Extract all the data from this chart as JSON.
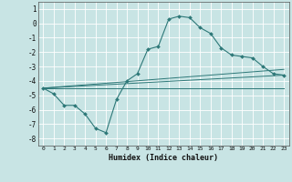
{
  "xlabel": "Humidex (Indice chaleur)",
  "xlim": [
    -0.5,
    23.5
  ],
  "ylim": [
    -8.5,
    1.5
  ],
  "xticks": [
    0,
    1,
    2,
    3,
    4,
    5,
    6,
    7,
    8,
    9,
    10,
    11,
    12,
    13,
    14,
    15,
    16,
    17,
    18,
    19,
    20,
    21,
    22,
    23
  ],
  "yticks": [
    -8,
    -7,
    -6,
    -5,
    -4,
    -3,
    -2,
    -1,
    0,
    1
  ],
  "background_color": "#c8e4e4",
  "grid_color": "#ffffff",
  "line_color": "#2d7878",
  "main_line": {
    "x": [
      0,
      1,
      2,
      3,
      4,
      5,
      6,
      7,
      8,
      9,
      10,
      11,
      12,
      13,
      14,
      15,
      16,
      17,
      18,
      19,
      20,
      21,
      22,
      23
    ],
    "y": [
      -4.5,
      -4.9,
      -5.7,
      -5.7,
      -6.3,
      -7.3,
      -7.6,
      -5.3,
      -4.0,
      -3.5,
      -1.8,
      -1.6,
      0.3,
      0.5,
      0.4,
      -0.3,
      -0.7,
      -1.7,
      -2.2,
      -2.3,
      -2.4,
      -3.0,
      -3.5,
      -3.6
    ]
  },
  "ref_lines": [
    {
      "x0": 0,
      "y0": -4.5,
      "x1": 23,
      "y1": -3.6
    },
    {
      "x0": 0,
      "y0": -4.5,
      "x1": 23,
      "y1": -4.5
    },
    {
      "x0": 0,
      "y0": -4.5,
      "x1": 23,
      "y1": -3.2
    }
  ]
}
